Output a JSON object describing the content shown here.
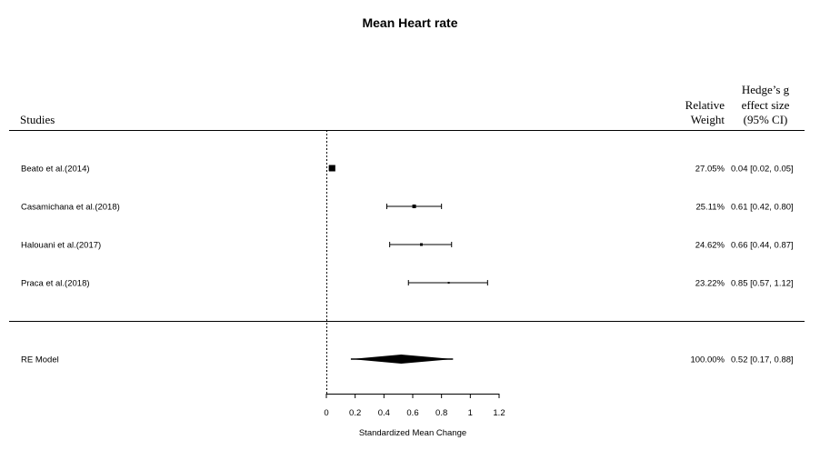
{
  "chart_data": {
    "type": "forest",
    "title": "Mean Heart rate",
    "headers": {
      "studies": "Studies",
      "weight": [
        "Relative",
        "Weight"
      ],
      "effect": [
        "Hedge’s g",
        "effect size",
        "(95% CI)"
      ]
    },
    "studies": [
      {
        "label": "Beato et al.(2014)",
        "estimate": 0.04,
        "ci": [
          0.02,
          0.05
        ],
        "weight": "27.05%",
        "ci_text": "0.04 [0.02, 0.05]"
      },
      {
        "label": "Casamichana et al.(2018)",
        "estimate": 0.61,
        "ci": [
          0.42,
          0.8
        ],
        "weight": "25.11%",
        "ci_text": "0.61 [0.42, 0.80]"
      },
      {
        "label": "Halouani et al.(2017)",
        "estimate": 0.66,
        "ci": [
          0.44,
          0.87
        ],
        "weight": "24.62%",
        "ci_text": "0.66 [0.44, 0.87]"
      },
      {
        "label": "Praca et al.(2018)",
        "estimate": 0.85,
        "ci": [
          0.57,
          1.12
        ],
        "weight": "23.22%",
        "ci_text": "0.85 [0.57, 1.12]"
      }
    ],
    "summary": {
      "label": "RE Model",
      "estimate": 0.52,
      "ci": [
        0.17,
        0.88
      ],
      "prediction_interval": [
        0.17,
        0.88
      ],
      "weight": "100.00%",
      "ci_text": "0.52 [0.17, 0.88]"
    },
    "xlabel": "Standardized Mean Change",
    "xticks": [
      0,
      0.2,
      0.4,
      0.6,
      0.8,
      1,
      1.2
    ],
    "xlim": [
      0,
      1.2
    ],
    "reference_line": 0
  }
}
